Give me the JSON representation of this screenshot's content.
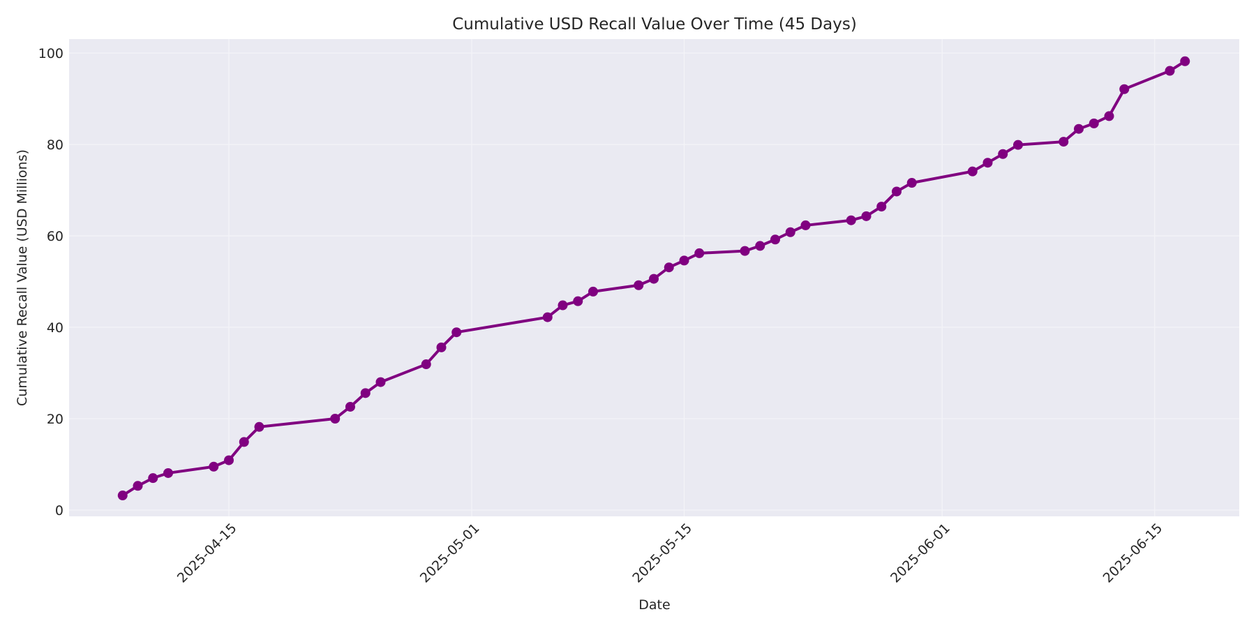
{
  "chart_data": {
    "type": "line",
    "title": "Cumulative USD Recall Value Over Time (45 Days)",
    "xlabel": "Date",
    "ylabel": "Cumulative Recall Value (USD Millions)",
    "ylim": [
      -1.5,
      102.5
    ],
    "yticks": [
      0,
      20,
      40,
      60,
      80,
      100
    ],
    "xticks": [
      "2025-04-15",
      "2025-05-01",
      "2025-05-15",
      "2025-06-01",
      "2025-06-15"
    ],
    "grid": true,
    "legend": null,
    "series": [
      {
        "name": "Cumulative Recall Value",
        "color": "#800080",
        "marker": "circle",
        "x": [
          "2025-04-08",
          "2025-04-09",
          "2025-04-10",
          "2025-04-11",
          "2025-04-14",
          "2025-04-15",
          "2025-04-16",
          "2025-04-17",
          "2025-04-22",
          "2025-04-23",
          "2025-04-24",
          "2025-04-25",
          "2025-04-28",
          "2025-04-29",
          "2025-04-30",
          "2025-05-06",
          "2025-05-07",
          "2025-05-08",
          "2025-05-09",
          "2025-05-12",
          "2025-05-13",
          "2025-05-14",
          "2025-05-15",
          "2025-05-16",
          "2025-05-19",
          "2025-05-20",
          "2025-05-21",
          "2025-05-22",
          "2025-05-23",
          "2025-05-26",
          "2025-05-27",
          "2025-05-28",
          "2025-05-29",
          "2025-05-30",
          "2025-06-03",
          "2025-06-04",
          "2025-06-05",
          "2025-06-06",
          "2025-06-09",
          "2025-06-10",
          "2025-06-11",
          "2025-06-12",
          "2025-06-13",
          "2025-06-16",
          "2025-06-17"
        ],
        "values": [
          3.2,
          5.3,
          7.0,
          8.1,
          9.5,
          10.9,
          14.9,
          18.2,
          20.0,
          22.6,
          25.6,
          28.0,
          31.9,
          35.6,
          38.9,
          42.2,
          44.8,
          45.7,
          47.8,
          49.2,
          50.6,
          53.1,
          54.6,
          56.2,
          56.7,
          57.8,
          59.2,
          60.8,
          62.3,
          63.4,
          64.3,
          66.4,
          69.7,
          71.6,
          74.1,
          76.0,
          77.9,
          79.9,
          80.6,
          83.4,
          84.6,
          86.2,
          92.1,
          96.1,
          98.2
        ]
      }
    ]
  },
  "style": {
    "plot_bg": "#eaeaf2",
    "grid_color": "#f4f4f8",
    "line_color": "#800080"
  }
}
